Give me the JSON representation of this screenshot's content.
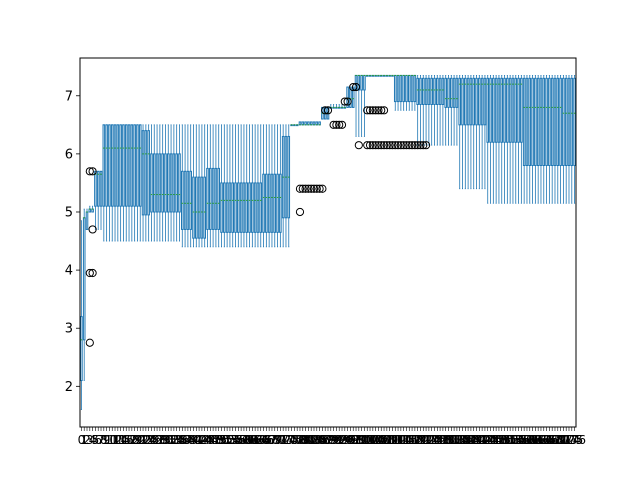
{
  "chart_data": {
    "type": "box",
    "title": "",
    "xlabel": "",
    "ylabel": "",
    "ylim": [
      1.3,
      7.65
    ],
    "y_ticks": [
      "2",
      "3",
      "4",
      "5",
      "6",
      "7"
    ],
    "y_tick_values": [
      2,
      3,
      4,
      5,
      6,
      7
    ],
    "x_count": 177,
    "x_tick_labels_visible": [
      "0",
      "2",
      "4",
      "6",
      "8",
      "10",
      "12"
    ],
    "box_color": "#1f77b4",
    "median_color": "#2ca02c",
    "flier_color": "#000000",
    "segments": [
      {
        "from": 0,
        "to": 1,
        "q1": 2.1,
        "q3": 3.2,
        "lo": 1.6,
        "hi": 4.85,
        "med": 2.8
      },
      {
        "from": 1,
        "to": 2,
        "q1": 2.8,
        "q3": 4.9,
        "lo": 2.1,
        "hi": 5.05,
        "med": 4.9
      },
      {
        "from": 2,
        "to": 3,
        "q1": 4.7,
        "q3": 5.0,
        "lo": 4.7,
        "hi": 5.05,
        "med": 5.0
      },
      {
        "from": 3,
        "to": 5,
        "q1": 5.0,
        "q3": 5.05,
        "lo": 5.0,
        "hi": 5.1,
        "med": 5.05
      },
      {
        "from": 5,
        "to": 8,
        "q1": 5.1,
        "q3": 5.7,
        "lo": 4.7,
        "hi": 5.7,
        "med": 5.65
      },
      {
        "from": 8,
        "to": 22,
        "q1": 5.1,
        "q3": 6.5,
        "lo": 4.5,
        "hi": 6.5,
        "med": 6.1
      },
      {
        "from": 22,
        "to": 25,
        "q1": 4.95,
        "q3": 6.4,
        "lo": 4.5,
        "hi": 6.5,
        "med": 6.0
      },
      {
        "from": 25,
        "to": 36,
        "q1": 5.0,
        "q3": 6.0,
        "lo": 4.5,
        "hi": 6.5,
        "med": 5.3
      },
      {
        "from": 36,
        "to": 40,
        "q1": 4.7,
        "q3": 5.7,
        "lo": 4.4,
        "hi": 6.5,
        "med": 5.15
      },
      {
        "from": 40,
        "to": 45,
        "q1": 4.55,
        "q3": 5.6,
        "lo": 4.4,
        "hi": 6.5,
        "med": 5.0
      },
      {
        "from": 45,
        "to": 50,
        "q1": 4.7,
        "q3": 5.75,
        "lo": 4.4,
        "hi": 6.5,
        "med": 5.15
      },
      {
        "from": 50,
        "to": 65,
        "q1": 4.65,
        "q3": 5.5,
        "lo": 4.4,
        "hi": 6.5,
        "med": 5.2
      },
      {
        "from": 65,
        "to": 72,
        "q1": 4.65,
        "q3": 5.65,
        "lo": 4.4,
        "hi": 6.5,
        "med": 5.25
      },
      {
        "from": 72,
        "to": 75,
        "q1": 4.9,
        "q3": 6.3,
        "lo": 4.4,
        "hi": 6.5,
        "med": 5.6
      },
      {
        "from": 75,
        "to": 78,
        "q1": 6.5,
        "q3": 6.5,
        "lo": 6.5,
        "hi": 6.5,
        "med": 6.5
      },
      {
        "from": 78,
        "to": 86,
        "q1": 6.5,
        "q3": 6.55,
        "lo": 6.5,
        "hi": 6.55,
        "med": 6.5
      },
      {
        "from": 86,
        "to": 89,
        "q1": 6.6,
        "q3": 6.8,
        "lo": 6.6,
        "hi": 6.8,
        "med": 6.7
      },
      {
        "from": 89,
        "to": 95,
        "q1": 6.8,
        "q3": 6.8,
        "lo": 6.8,
        "hi": 6.85,
        "med": 6.8
      },
      {
        "from": 95,
        "to": 98,
        "q1": 6.8,
        "q3": 7.15,
        "lo": 6.8,
        "hi": 7.15,
        "med": 6.95
      },
      {
        "from": 98,
        "to": 102,
        "q1": 7.1,
        "q3": 7.35,
        "lo": 6.3,
        "hi": 7.35,
        "med": 7.35
      },
      {
        "from": 102,
        "to": 112,
        "q1": 7.35,
        "q3": 7.35,
        "lo": 7.35,
        "hi": 7.35,
        "med": 7.35
      },
      {
        "from": 112,
        "to": 120,
        "q1": 6.9,
        "q3": 7.35,
        "lo": 6.75,
        "hi": 7.35,
        "med": 7.35
      },
      {
        "from": 120,
        "to": 130,
        "q1": 6.85,
        "q3": 7.3,
        "lo": 6.15,
        "hi": 7.35,
        "med": 7.1
      },
      {
        "from": 130,
        "to": 135,
        "q1": 6.8,
        "q3": 7.3,
        "lo": 6.15,
        "hi": 7.35,
        "med": 6.95
      },
      {
        "from": 135,
        "to": 145,
        "q1": 6.5,
        "q3": 7.3,
        "lo": 5.4,
        "hi": 7.35,
        "med": 7.2
      },
      {
        "from": 145,
        "to": 158,
        "q1": 6.2,
        "q3": 7.3,
        "lo": 5.15,
        "hi": 7.35,
        "med": 7.2
      },
      {
        "from": 158,
        "to": 172,
        "q1": 5.8,
        "q3": 7.3,
        "lo": 5.15,
        "hi": 7.35,
        "med": 6.8
      },
      {
        "from": 172,
        "to": 177,
        "q1": 5.8,
        "q3": 7.3,
        "lo": 5.15,
        "hi": 7.35,
        "med": 6.7
      }
    ],
    "outliers": [
      {
        "x": 3,
        "y": 5.7
      },
      {
        "x": 4,
        "y": 5.7
      },
      {
        "x": 4,
        "y": 4.7
      },
      {
        "x": 3,
        "y": 3.95
      },
      {
        "x": 4,
        "y": 3.95
      },
      {
        "x": 3,
        "y": 2.75
      },
      {
        "x": 78,
        "y": 5.0
      },
      {
        "x": 78,
        "y": 5.4
      },
      {
        "x": 79,
        "y": 5.4
      },
      {
        "x": 80,
        "y": 5.4
      },
      {
        "x": 81,
        "y": 5.4
      },
      {
        "x": 82,
        "y": 5.4
      },
      {
        "x": 83,
        "y": 5.4
      },
      {
        "x": 84,
        "y": 5.4
      },
      {
        "x": 85,
        "y": 5.4
      },
      {
        "x": 86,
        "y": 5.4
      },
      {
        "x": 87,
        "y": 6.75
      },
      {
        "x": 88,
        "y": 6.75
      },
      {
        "x": 90,
        "y": 6.5
      },
      {
        "x": 91,
        "y": 6.5
      },
      {
        "x": 92,
        "y": 6.5
      },
      {
        "x": 93,
        "y": 6.5
      },
      {
        "x": 94,
        "y": 6.9
      },
      {
        "x": 95,
        "y": 6.9
      },
      {
        "x": 97,
        "y": 7.15
      },
      {
        "x": 98,
        "y": 7.15
      },
      {
        "x": 99,
        "y": 6.15
      },
      {
        "x": 102,
        "y": 6.75
      },
      {
        "x": 103,
        "y": 6.75
      },
      {
        "x": 104,
        "y": 6.75
      },
      {
        "x": 105,
        "y": 6.75
      },
      {
        "x": 106,
        "y": 6.75
      },
      {
        "x": 107,
        "y": 6.75
      },
      {
        "x": 108,
        "y": 6.75
      },
      {
        "x": 102,
        "y": 6.15
      },
      {
        "x": 103,
        "y": 6.15
      },
      {
        "x": 104,
        "y": 6.15
      },
      {
        "x": 105,
        "y": 6.15
      },
      {
        "x": 106,
        "y": 6.15
      },
      {
        "x": 107,
        "y": 6.15
      },
      {
        "x": 108,
        "y": 6.15
      },
      {
        "x": 109,
        "y": 6.15
      },
      {
        "x": 110,
        "y": 6.15
      },
      {
        "x": 111,
        "y": 6.15
      },
      {
        "x": 112,
        "y": 6.15
      },
      {
        "x": 113,
        "y": 6.15
      },
      {
        "x": 114,
        "y": 6.15
      },
      {
        "x": 115,
        "y": 6.15
      },
      {
        "x": 116,
        "y": 6.15
      },
      {
        "x": 117,
        "y": 6.15
      },
      {
        "x": 118,
        "y": 6.15
      },
      {
        "x": 119,
        "y": 6.15
      },
      {
        "x": 120,
        "y": 6.15
      },
      {
        "x": 121,
        "y": 6.15
      },
      {
        "x": 122,
        "y": 6.15
      },
      {
        "x": 123,
        "y": 6.15
      }
    ],
    "grid": false,
    "legend": "none"
  }
}
